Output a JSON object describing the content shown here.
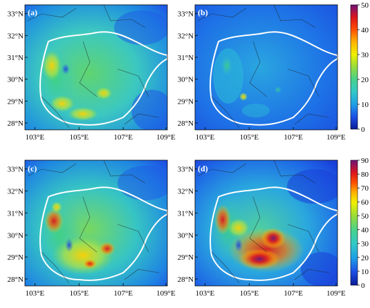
{
  "panels": [
    {
      "label": "(a)",
      "scale": "top"
    },
    {
      "label": "(b)",
      "scale": "top"
    },
    {
      "label": "(c)",
      "scale": "bottom"
    },
    {
      "label": "(d)",
      "scale": "bottom"
    }
  ],
  "lat_labels": [
    "33°N",
    "32°N",
    "31°N",
    "30°N",
    "29°N",
    "28°N"
  ],
  "lon_labels": [
    "103°E",
    "105°E",
    "107°E",
    "109°E"
  ],
  "colorbars": [
    {
      "ticks": [
        "50",
        "40",
        "30",
        "20",
        "10",
        "0"
      ],
      "min": 0,
      "max": 50
    },
    {
      "ticks": [
        "90",
        "80",
        "70",
        "60",
        "50",
        "40",
        "30",
        "20",
        "10",
        "0"
      ],
      "min": 0,
      "max": 90
    }
  ],
  "colors": {
    "ramp": [
      "#0a1c99",
      "#1e50e6",
      "#1ea0e6",
      "#32c8c8",
      "#46d28c",
      "#96dc3c",
      "#f0f000",
      "#ffb400",
      "#ff5000",
      "#dc141e",
      "#aa0050",
      "#6e1478"
    ],
    "boundary": "#ffffff"
  }
}
